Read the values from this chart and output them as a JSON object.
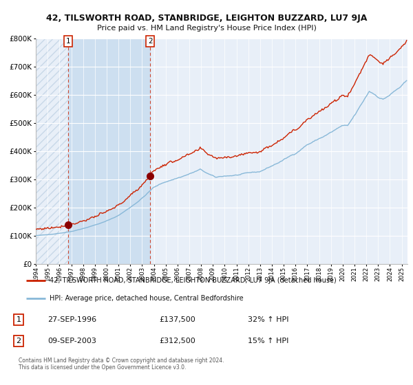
{
  "title_line1": "42, TILSWORTH ROAD, STANBRIDGE, LEIGHTON BUZZARD, LU7 9JA",
  "title_line2": "Price paid vs. HM Land Registry's House Price Index (HPI)",
  "legend_red": "42, TILSWORTH ROAD, STANBRIDGE, LEIGHTON BUZZARD, LU7 9JA (detached house)",
  "legend_blue": "HPI: Average price, detached house, Central Bedfordshire",
  "purchase1_date": "27-SEP-1996",
  "purchase1_price": 137500,
  "purchase1_pct": "32%",
  "purchase2_date": "09-SEP-2003",
  "purchase2_price": 312500,
  "purchase2_pct": "15%",
  "footer_line1": "Contains HM Land Registry data © Crown copyright and database right 2024.",
  "footer_line2": "This data is licensed under the Open Government Licence v3.0.",
  "ylim": [
    0,
    800000
  ],
  "background_color": "#ffffff",
  "plot_bg_color": "#e8eff8",
  "shaded_region_color": "#cddff0",
  "hatch_color": "#c8d8e8",
  "grid_color": "#ffffff",
  "red_color": "#cc2200",
  "blue_color": "#88b8d8",
  "purchase1_x": 1996.75,
  "purchase2_x": 2003.69,
  "xlim_left": 1994.0,
  "xlim_right": 2025.5
}
